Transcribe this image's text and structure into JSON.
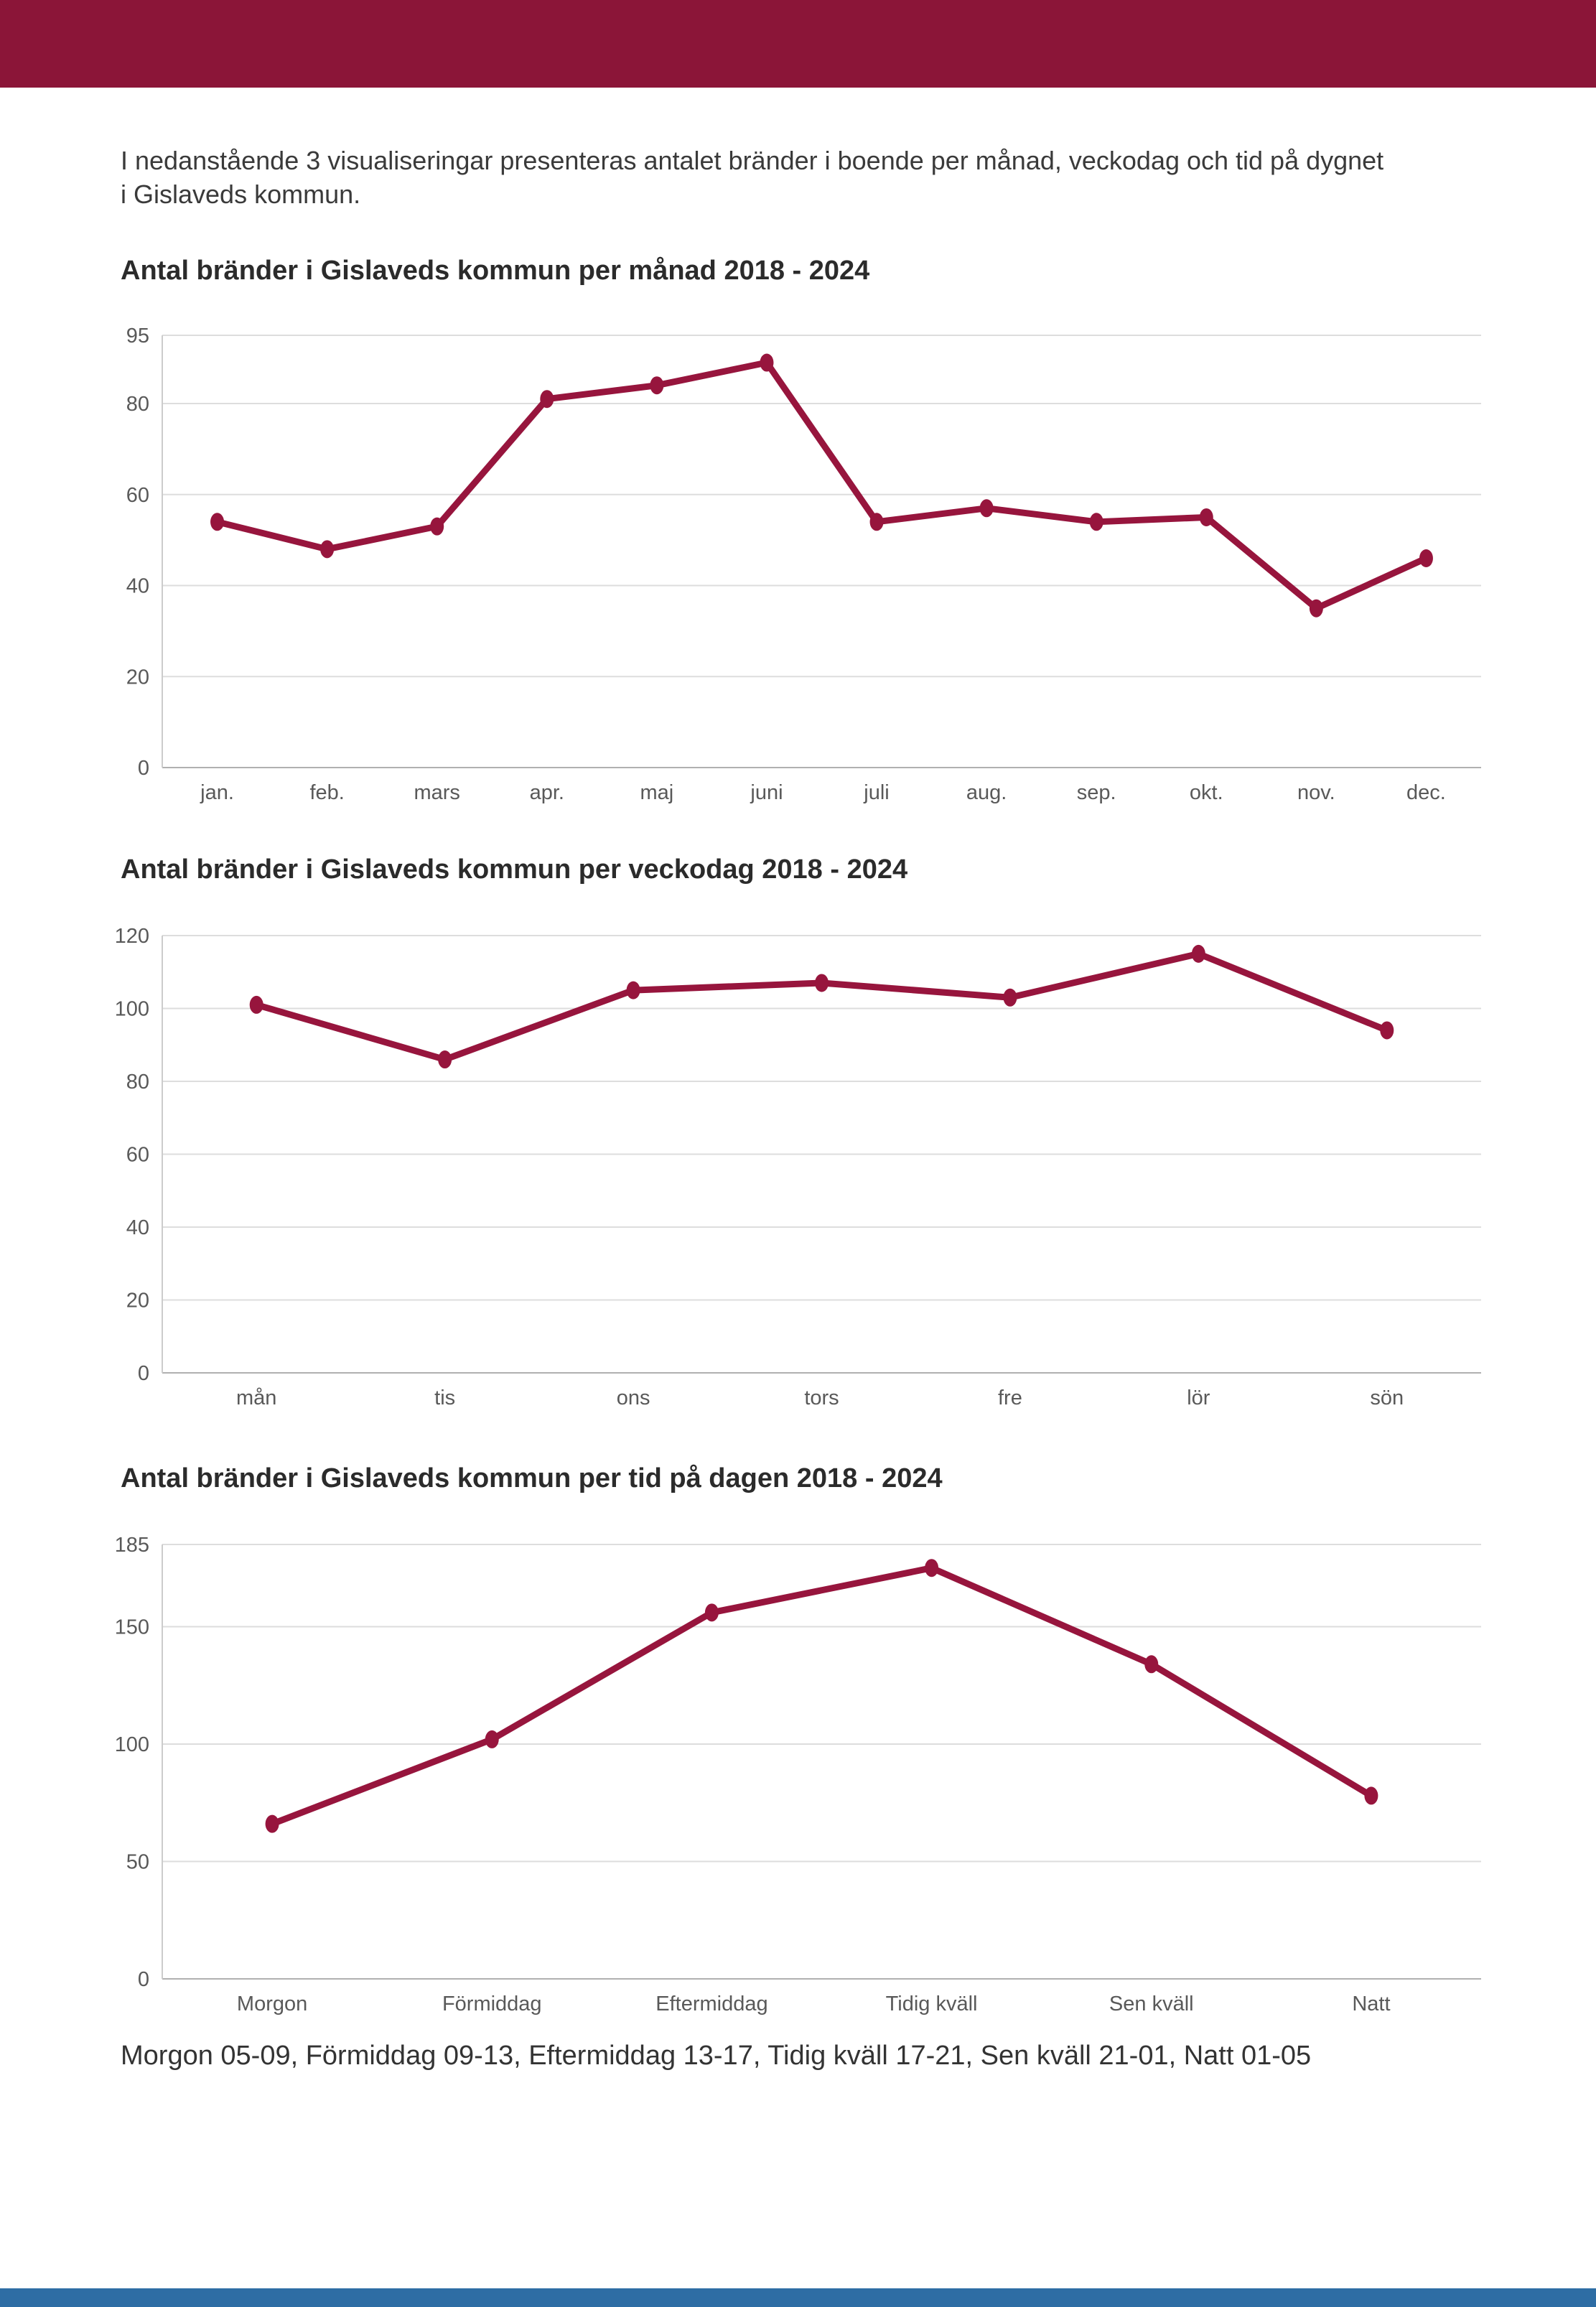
{
  "page": {
    "intro_line1": "I nedanstående 3 visualiseringar presenteras antalet bränder i boende per månad, veckodag och tid på dygnet",
    "intro_line2": "i Gislaveds kommun.",
    "footer_note": "Morgon 05-09, Förmiddag 09-13, Eftermiddag 13-17, Tidig kväll 17-21, Sen kväll 21-01, Natt 01-05"
  },
  "colors": {
    "header_bar": "#8B1538",
    "footer_bar": "#2E6DA4",
    "line": "#97153D",
    "marker": "#97153D",
    "grid": "#DDDDDD",
    "zero_axis": "#B0B0B0",
    "left_axis": "#CCCCCC",
    "tick_label": "#595959",
    "title": "#2B2B2B"
  },
  "chart_data": [
    {
      "type": "line",
      "title": "Antal bränder i Gislaveds kommun per månad 2018 - 2024",
      "categories": [
        "jan.",
        "feb.",
        "mars",
        "apr.",
        "maj",
        "juni",
        "juli",
        "aug.",
        "sep.",
        "okt.",
        "nov.",
        "dec."
      ],
      "values": [
        54,
        48,
        53,
        81,
        84,
        89,
        54,
        57,
        54,
        55,
        35,
        46
      ],
      "yticks": [
        0,
        20,
        40,
        60,
        80,
        95
      ],
      "ylim": [
        0,
        95
      ],
      "xlabel": "",
      "ylabel": "",
      "grid": true,
      "legend": "none"
    },
    {
      "type": "line",
      "title": "Antal bränder i Gislaveds kommun per veckodag 2018 - 2024",
      "categories": [
        "mån",
        "tis",
        "ons",
        "tors",
        "fre",
        "lör",
        "sön"
      ],
      "values": [
        101,
        86,
        105,
        107,
        103,
        115,
        94
      ],
      "yticks": [
        0,
        20,
        40,
        60,
        80,
        100,
        120
      ],
      "ylim": [
        0,
        120
      ],
      "xlabel": "",
      "ylabel": "",
      "grid": true,
      "legend": "none"
    },
    {
      "type": "line",
      "title": "Antal bränder i Gislaveds kommun per tid på dagen 2018 - 2024",
      "categories": [
        "Morgon",
        "Förmiddag",
        "Eftermiddag",
        "Tidig kväll",
        "Sen kväll",
        "Natt"
      ],
      "values": [
        66,
        102,
        156,
        175,
        134,
        78
      ],
      "yticks": [
        0,
        50,
        100,
        150,
        185
      ],
      "ylim": [
        0,
        185
      ],
      "xlabel": "",
      "ylabel": "",
      "grid": true,
      "legend": "none"
    }
  ],
  "chart_layout": {
    "plot_heights": [
      602,
      609,
      605
    ]
  }
}
